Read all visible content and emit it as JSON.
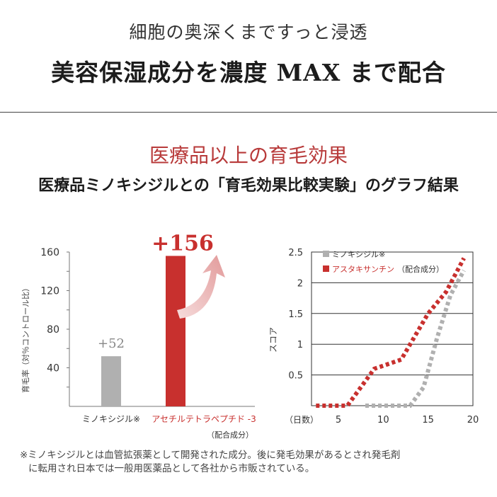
{
  "header": {
    "subtitle": "細胞の奥深くまですっと浸透",
    "headline": "美容保湿成分を濃度 MAX まで配合"
  },
  "section": {
    "title": "医療品以上の育毛効果",
    "subtitle": "医療品ミノキシジルとの「育毛効果比較実験」のグラフ結果"
  },
  "chart_data": [
    {
      "type": "bar",
      "ylabel": "育毛率（対％コントロール比）",
      "ylim": [
        0,
        160
      ],
      "yticks": [
        "40",
        "80",
        "120",
        "160"
      ],
      "categories": [
        "ミノキシジル※",
        "アセチルテトラペプチド -3"
      ],
      "category_note": "（配合成分）",
      "values": [
        52,
        156
      ],
      "value_labels": [
        "+52",
        "+156"
      ],
      "colors": [
        "#b0b0b0",
        "#c8302e"
      ]
    },
    {
      "type": "line",
      "xlabel": "（日数）",
      "ylabel": "スコア",
      "xlim": [
        2,
        20
      ],
      "ylim": [
        0,
        2.5
      ],
      "xticks": [
        "5",
        "10",
        "15",
        "20"
      ],
      "yticks": [
        "0.5",
        "1",
        "1.5",
        "2",
        "2.5"
      ],
      "grid": true,
      "legend": "top-left",
      "series": [
        {
          "name": "ミノキシジル※",
          "color": "#b0b0b0",
          "points": [
            [
              8,
              0
            ],
            [
              13,
              0
            ],
            [
              14.5,
              0.3
            ],
            [
              16,
              1.1
            ],
            [
              17.5,
              1.8
            ],
            [
              19,
              2.2
            ]
          ]
        },
        {
          "name": "アスタキサンチン",
          "note": "（配合成分）",
          "color": "#c8302e",
          "points": [
            [
              2.5,
              0
            ],
            [
              6,
              0
            ],
            [
              9,
              0.6
            ],
            [
              12,
              0.75
            ],
            [
              15,
              1.5
            ],
            [
              17,
              1.85
            ],
            [
              19,
              2.4
            ]
          ]
        }
      ]
    }
  ],
  "footnote": {
    "line1": "※ミノキシジルとは血管拡張薬として開発された成分。後に発毛効果があるとされ発毛剤",
    "line2": "に転用され日本では一般用医薬品として各社から市販されている。"
  }
}
